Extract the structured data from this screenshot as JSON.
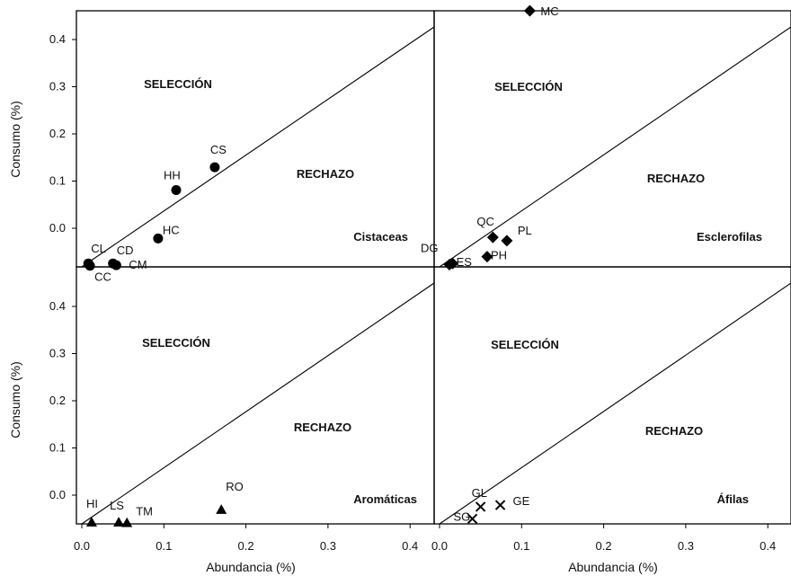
{
  "chart_data": {
    "type": "scatter",
    "layout": "2x2",
    "xlabel": "Abundancia (%)",
    "ylabel": "Consumo (%)",
    "x_ticks": [
      "0.0",
      "0.1",
      "0.2",
      "0.3",
      "0.4"
    ],
    "y_ticks": [
      "0.0",
      "0.1",
      "0.2",
      "0.3",
      "0.4"
    ],
    "xlim": [
      0,
      0.42
    ],
    "ylim": [
      0,
      0.45
    ],
    "grid": false,
    "reference_line": "y = x",
    "regions": {
      "above": "SELECCIÓN",
      "below": "RECHAZO"
    },
    "panels": [
      {
        "name": "Cistaceas",
        "marker": "circle",
        "points": [
          {
            "label": "CL",
            "x": 0.008,
            "y": 0.006
          },
          {
            "label": "CC",
            "x": 0.01,
            "y": 0.002
          },
          {
            "label": "CD",
            "x": 0.038,
            "y": 0.006
          },
          {
            "label": "CM",
            "x": 0.042,
            "y": 0.003
          },
          {
            "label": "HC",
            "x": 0.093,
            "y": 0.05
          },
          {
            "label": "HH",
            "x": 0.115,
            "y": 0.135
          },
          {
            "label": "CS",
            "x": 0.162,
            "y": 0.175
          }
        ]
      },
      {
        "name": "Esclerofilas",
        "marker": "diamond",
        "points": [
          {
            "label": "DG",
            "x": 0.012,
            "y": 0.004
          },
          {
            "label": "ES",
            "x": 0.016,
            "y": 0.006
          },
          {
            "label": "PH",
            "x": 0.058,
            "y": 0.018
          },
          {
            "label": "QC",
            "x": 0.065,
            "y": 0.052
          },
          {
            "label": "PL",
            "x": 0.082,
            "y": 0.046
          },
          {
            "label": "MC",
            "x": 0.11,
            "y": 0.45
          }
        ]
      },
      {
        "name": "Aromáticas",
        "marker": "triangle",
        "points": [
          {
            "label": "HI",
            "x": 0.012,
            "y": 0.003
          },
          {
            "label": "LS",
            "x": 0.045,
            "y": 0.003
          },
          {
            "label": "TM",
            "x": 0.055,
            "y": 0.002
          },
          {
            "label": "RO",
            "x": 0.17,
            "y": 0.025
          }
        ]
      },
      {
        "name": "Áfilas",
        "marker": "x",
        "points": [
          {
            "label": "SG",
            "x": 0.04,
            "y": 0.009
          },
          {
            "label": "GL",
            "x": 0.05,
            "y": 0.03
          },
          {
            "label": "GE",
            "x": 0.074,
            "y": 0.033
          }
        ]
      }
    ]
  }
}
